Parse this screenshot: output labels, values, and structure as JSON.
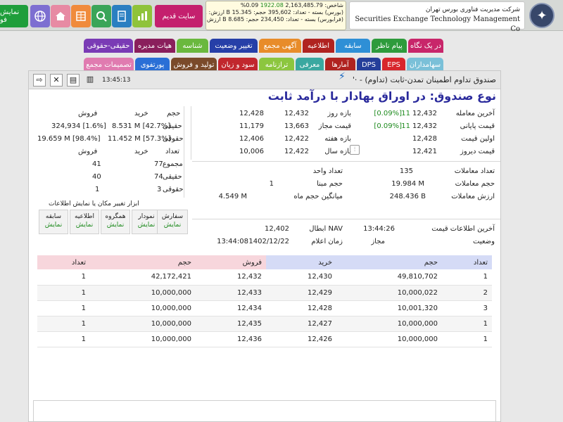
{
  "topbar": {
    "show_label": "نمایش فو",
    "old_site_label": "سایت قدیم",
    "icons": [
      "globe-icon",
      "home-icon",
      "grid-icon",
      "search-icon",
      "book-icon",
      "chart-icon"
    ],
    "ticker": {
      "line1_label": "شاخص:",
      "line1_values": "2,163,485.79",
      "line1_change": "1922.08",
      "line1_pct": "0.09%",
      "line2": "(بورس) بسته - تعداد: 395,602 حجم: 15.345 B ارزش: 317,647.741 B",
      "line3": "(فرابورس) بسته - تعداد: 234,450 حجم: 8.685 B ارزش: 716,362.464 B"
    },
    "company_fa": "شرکت مدیریت فناوری بورس تهران",
    "company_en": "Securities Exchange Technology Management Co"
  },
  "tabs": {
    "row1": [
      "در یک نگاه",
      "پیام ناظر",
      "سابقه",
      "اطلاعیه",
      "آگهی مجمع",
      "تغییر وضعیت",
      "شناسه",
      "هیات مدیره",
      "حقیقی-حقوقی"
    ],
    "row2": [
      "سهامداران",
      "EPS",
      "DPS",
      "آمارها",
      "معرفی",
      "ترازنامه",
      "سود و زیان",
      "تولید و فروش",
      "پورتفوی",
      "تصمیمات مجمع"
    ]
  },
  "panel": {
    "fund_name": "صندوق تداوم اطمینان تمدن-ثابت (تداوم) - ·'",
    "time": "13:45:13",
    "fund_type": "نوع صندوق: در اوراق بهادار با درآمد ثابت",
    "trade": {
      "last_trade_label": "آخرین معامله",
      "last_trade": "12,432",
      "last_trade_change": "11",
      "last_trade_pct": "[0.09%]",
      "close_price_label": "قیمت پایانی",
      "close_price": "12,432",
      "close_price_change": "11",
      "close_price_pct": "[0.09%]",
      "first_price_label": "اولین قیمت",
      "first_price": "12,428",
      "yesterday_price_label": "قیمت دیروز",
      "yesterday_price": "12,421"
    },
    "ranges": {
      "day_label": "بازه روز",
      "day_low": "12,432",
      "day_high": "12,428",
      "allowed_label": "قیمت مجاز",
      "allowed_low": "13,663",
      "allowed_high": "11,179",
      "week_label": "بازه هفته",
      "week_low": "12,422",
      "week_high": "12,406",
      "year_label": "بازه سال",
      "year_low": "12,422",
      "year_high": "10,006"
    },
    "stats": {
      "count_label": "تعداد معاملات",
      "count": "135",
      "volume_label": "حجم معاملات",
      "volume": "19.984 M",
      "value_label": "ارزش معاملات",
      "value": "248.436 B",
      "unit_count_label": "تعداد واحد",
      "base_volume_label": "حجم مبنا",
      "base_volume": "1",
      "avg_month_label": "میانگین حجم ماه",
      "avg_month": "4.549 M"
    },
    "nav": {
      "info_update_label": "آخرین اطلاعات قیمت",
      "info_update_time": "13:44:26",
      "status_label": "وضعیت",
      "status": "مجاز",
      "nav_label": "NAV ابطال",
      "nav_value": "12,402",
      "announce_label": "زمان اعلام",
      "announce_date": "1402/12/22",
      "announce_time": "13:44:08"
    },
    "ownership": {
      "h_volume": "حجم",
      "h_buy": "خرید",
      "h_sell": "فروش",
      "real_label": "حقیقی",
      "real_buy": "8.531 M [42.7%]",
      "real_sell": "324,934 [1.6%]",
      "legal_label": "حقوقی",
      "legal_buy": "11.452 M [57.3%]",
      "legal_sell": "19.659 M [98.4%]",
      "h_count": "تعداد",
      "h_buy2": "خرید",
      "h_sell2": "فروش",
      "total_label": "مجموع",
      "total_buy": "77",
      "total_sell": "41",
      "real2_label": "حقیقی",
      "real2_buy": "74",
      "real2_sell": "40",
      "legal2_label": "حقوقی",
      "legal2_buy": "3",
      "legal2_sell": "1"
    },
    "tools": {
      "title": "ابزار تغییر مکان یا نمایش اطلاعات",
      "items": [
        {
          "label": "سفارش",
          "action": "نمایش"
        },
        {
          "label": "نمودار",
          "action": "نمایش"
        },
        {
          "label": "همگروه",
          "action": "نمایش"
        },
        {
          "label": "اطلاعیه",
          "action": "نمایش"
        },
        {
          "label": "سابقه",
          "action": "نمایش"
        }
      ]
    },
    "orderbook": {
      "headers": {
        "count_r": "تعداد",
        "volume_r": "حجم",
        "buy": "خرید",
        "sell": "فروش",
        "volume_l": "حجم",
        "count_l": "تعداد"
      },
      "rows": [
        {
          "bc": "1",
          "bv": "49,810,702",
          "bp": "12,430",
          "sp": "12,432",
          "sv": "42,172,421",
          "sc": "1"
        },
        {
          "bc": "2",
          "bv": "10,000,022",
          "bp": "12,429",
          "sp": "12,433",
          "sv": "10,000,000",
          "sc": "1"
        },
        {
          "bc": "3",
          "bv": "10,001,320",
          "bp": "12,428",
          "sp": "12,434",
          "sv": "10,000,000",
          "sc": "1"
        },
        {
          "bc": "1",
          "bv": "10,000,000",
          "bp": "12,427",
          "sp": "12,435",
          "sv": "10,000,000",
          "sc": "1"
        },
        {
          "bc": "1",
          "bv": "10,000,000",
          "bp": "12,426",
          "sp": "12,436",
          "sv": "10,000,000",
          "sc": "1"
        }
      ]
    }
  },
  "colors": {
    "buy_header": "#d5dbf6",
    "sell_header": "#f7d6dc",
    "title_blue": "#2a2a9c",
    "positive": "#1d8a1d"
  }
}
